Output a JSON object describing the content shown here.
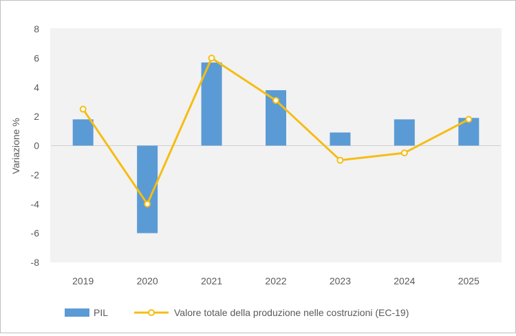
{
  "chart_data": {
    "type": "bar+line",
    "title": "",
    "xlabel": "",
    "ylabel": "Variazione %",
    "ylim": [
      -8,
      8
    ],
    "yticks": [
      8,
      6,
      4,
      2,
      0,
      -2,
      -4,
      -6,
      -8
    ],
    "grid": false,
    "legend_position": "bottom",
    "categories": [
      "2019",
      "2020",
      "2021",
      "2022",
      "2023",
      "2024",
      "2025"
    ],
    "series": [
      {
        "name": "PIL",
        "type": "bar",
        "color": "#5b9bd5",
        "values": [
          1.8,
          -6.0,
          5.7,
          3.8,
          0.9,
          1.8,
          1.9
        ]
      },
      {
        "name": "Valore totale della produzione nelle costruzioni (EC-19)",
        "type": "line",
        "color": "#f5bd12",
        "values": [
          2.5,
          -4.0,
          6.0,
          3.1,
          -1.0,
          -0.5,
          1.8
        ]
      }
    ]
  }
}
